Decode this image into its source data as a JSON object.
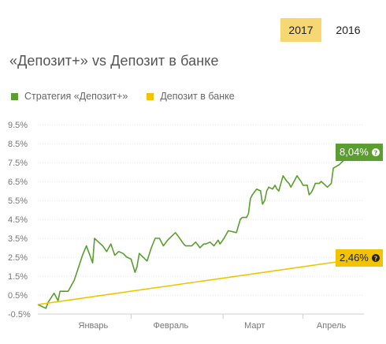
{
  "year_tabs": [
    {
      "label": "2017",
      "active": true
    },
    {
      "label": "2016",
      "active": false
    }
  ],
  "title": "«Депозит+» vs Депозит в банке",
  "chart_data": {
    "type": "line",
    "title": "«Депозит+» vs Депозит в банке",
    "xlabel": "",
    "ylabel": "",
    "ylim": [
      -0.5,
      9.5
    ],
    "y_ticks": [
      "9.5%",
      "8.5%",
      "7.5%",
      "6.5%",
      "5.5%",
      "4.5%",
      "3.5%",
      "2.5%",
      "1.5%",
      "0.5%",
      "-0.5%"
    ],
    "y_tick_values": [
      9.5,
      8.5,
      7.5,
      6.5,
      5.5,
      4.5,
      3.5,
      2.5,
      1.5,
      0.5,
      -0.5
    ],
    "x_range": [
      0,
      100
    ],
    "x_ticks": [
      "Январь",
      "Февраль",
      "Март",
      "Апрель"
    ],
    "x_tick_values": [
      17.0,
      40.8,
      66.5,
      90.0
    ],
    "x_separators": [
      28.6,
      56.8,
      81.3
    ],
    "grid": true,
    "legend_position": "top-left",
    "colors": {
      "strategy": "#5a9e2f",
      "bank": "#f2c300"
    },
    "series": [
      {
        "name": "Стратегия «Депозит+»",
        "x": [
          0,
          2.5,
          3.1,
          5.0,
          6.2,
          6.8,
          8.5,
          9.3,
          11.2,
          13.7,
          14.9,
          16.8,
          17.4,
          18.6,
          19.9,
          21.1,
          22.4,
          23.6,
          24.8,
          26.1,
          27.3,
          28.6,
          29.8,
          30.4,
          31.1,
          32.3,
          33.5,
          34.8,
          36.0,
          37.3,
          38.5,
          39.8,
          41.0,
          42.2,
          43.5,
          44.7,
          45.3,
          46.0,
          47.2,
          48.4,
          49.7,
          50.9,
          51.6,
          52.8,
          54.0,
          55.3,
          55.9,
          57.1,
          58.4,
          60.9,
          62.1,
          62.7,
          63.4,
          64.0,
          64.6,
          65.2,
          65.8,
          67.1,
          68.3,
          68.9,
          69.6,
          70.2,
          70.8,
          72.0,
          72.7,
          73.3,
          73.9,
          75.2,
          76.4,
          77.0,
          77.6,
          79.5,
          80.7,
          81.3,
          82.6,
          83.2,
          83.8,
          84.4,
          85.1,
          85.7,
          86.3,
          86.9,
          88.8,
          90.0,
          90.6,
          92.5,
          93.1,
          94.3,
          95.0,
          100
        ],
        "y": [
          0.0,
          -0.2,
          0.1,
          0.6,
          0.2,
          0.7,
          0.7,
          0.7,
          1.3,
          2.6,
          3.1,
          2.2,
          3.5,
          3.3,
          3.1,
          2.8,
          3.2,
          2.6,
          2.8,
          2.7,
          2.5,
          2.4,
          1.7,
          2.0,
          2.7,
          2.5,
          2.3,
          3.0,
          3.5,
          3.5,
          3.1,
          3.4,
          3.6,
          3.8,
          3.5,
          3.2,
          3.1,
          3.1,
          3.1,
          3.3,
          3.0,
          3.2,
          3.2,
          3.3,
          3.1,
          3.4,
          3.2,
          3.5,
          3.9,
          3.8,
          4.5,
          4.6,
          4.6,
          4.6,
          4.8,
          5.6,
          5.8,
          6.1,
          6.0,
          5.3,
          5.5,
          6.0,
          6.2,
          6.1,
          6.3,
          6.1,
          6.0,
          6.8,
          6.5,
          6.4,
          6.2,
          6.8,
          6.5,
          6.3,
          6.3,
          5.8,
          5.9,
          6.1,
          6.4,
          6.4,
          6.4,
          6.5,
          6.2,
          6.4,
          7.2,
          7.4,
          7.5,
          7.7,
          8.0,
          8.04
        ],
        "label": "8,04%"
      },
      {
        "name": "Депозит в банке",
        "x": [
          0,
          100
        ],
        "y": [
          0.0,
          2.46
        ],
        "label": "2,46%"
      }
    ]
  }
}
